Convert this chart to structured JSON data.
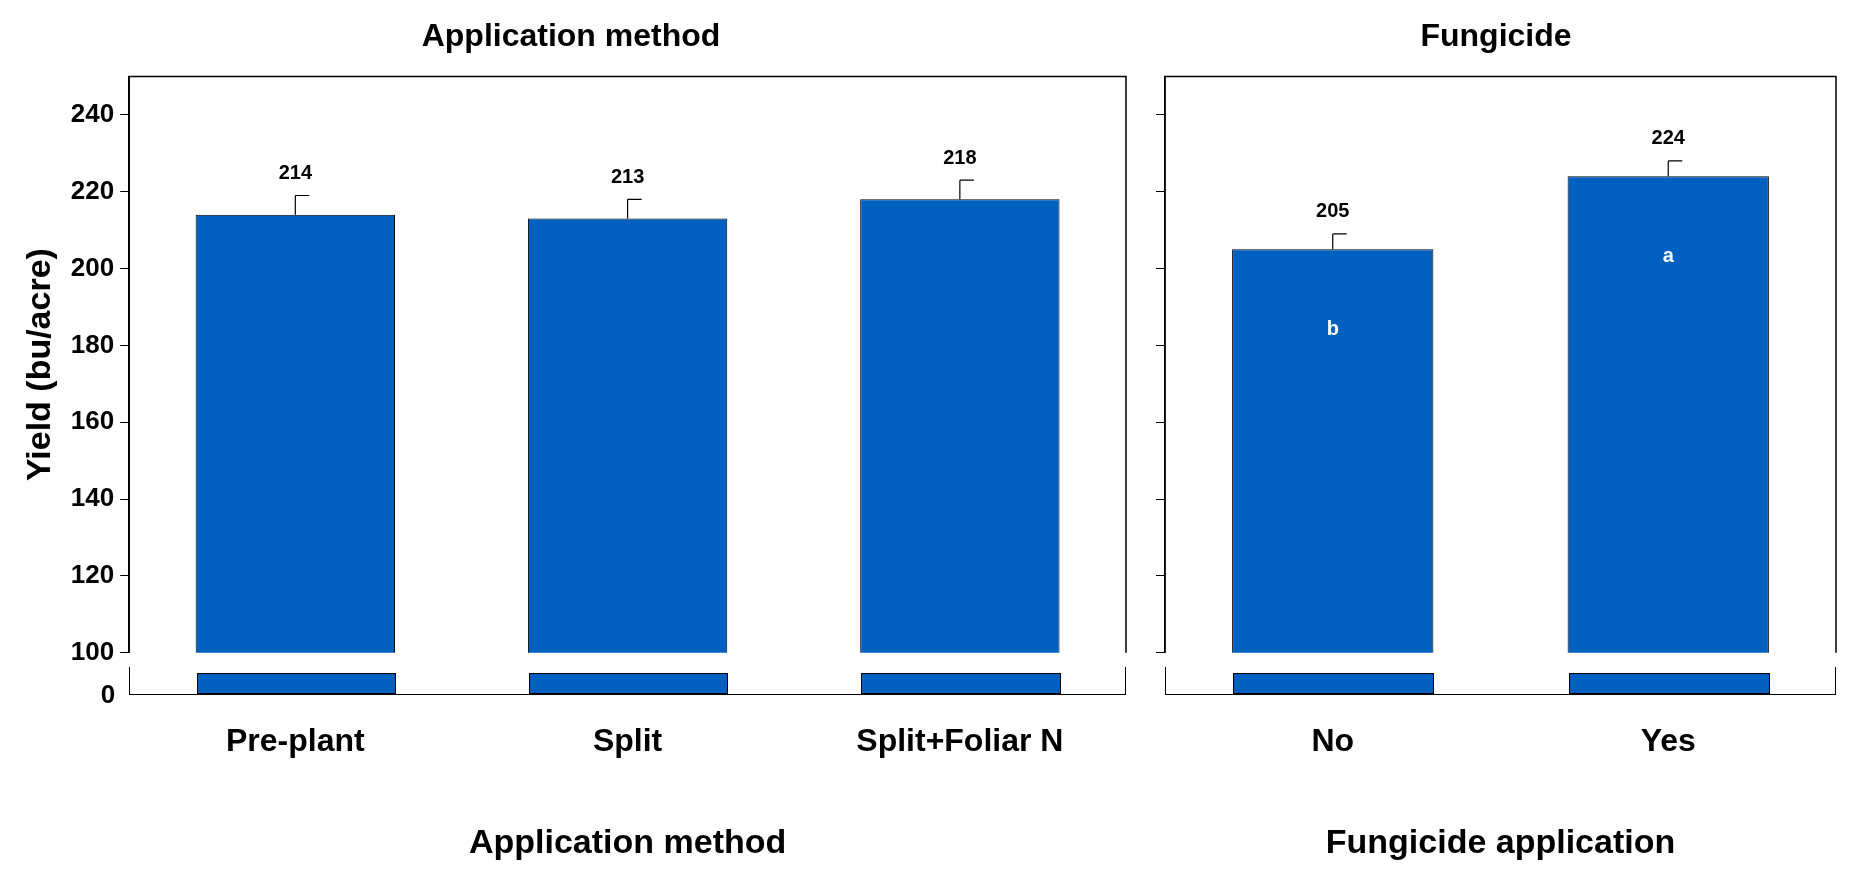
{
  "chart_data": [
    {
      "type": "bar",
      "title": "Application method",
      "xlabel": "Application method",
      "ylabel": "Yield (bu/acre)",
      "categories": [
        "Pre-plant",
        "Split",
        "Split+Foliar N"
      ],
      "values": [
        214,
        213,
        218
      ],
      "color": "#0060c0",
      "errors": [
        [
          214,
          219
        ],
        [
          213,
          218
        ],
        [
          218,
          223
        ]
      ],
      "ylim": [
        100,
        250
      ],
      "yticks": [
        100,
        120,
        140,
        160,
        180,
        200,
        220,
        240
      ],
      "data_labels": true,
      "grid": false,
      "annotations": [
        "0"
      ]
    },
    {
      "type": "bar",
      "title": "Fungicide",
      "xlabel": "Fungicide application",
      "categories": [
        "No",
        "Yes"
      ],
      "values": [
        205,
        224
      ],
      "color": "#0060c0",
      "errors": [
        [
          205,
          209
        ],
        [
          224,
          228
        ]
      ],
      "ylim": [
        100,
        250
      ],
      "yticks": [
        100,
        120,
        140,
        160,
        180,
        200,
        220,
        240
      ],
      "data_labels": true,
      "grid": false,
      "tick_labels": "x",
      "annotations": [
        "b",
        "a"
      ]
    }
  ]
}
